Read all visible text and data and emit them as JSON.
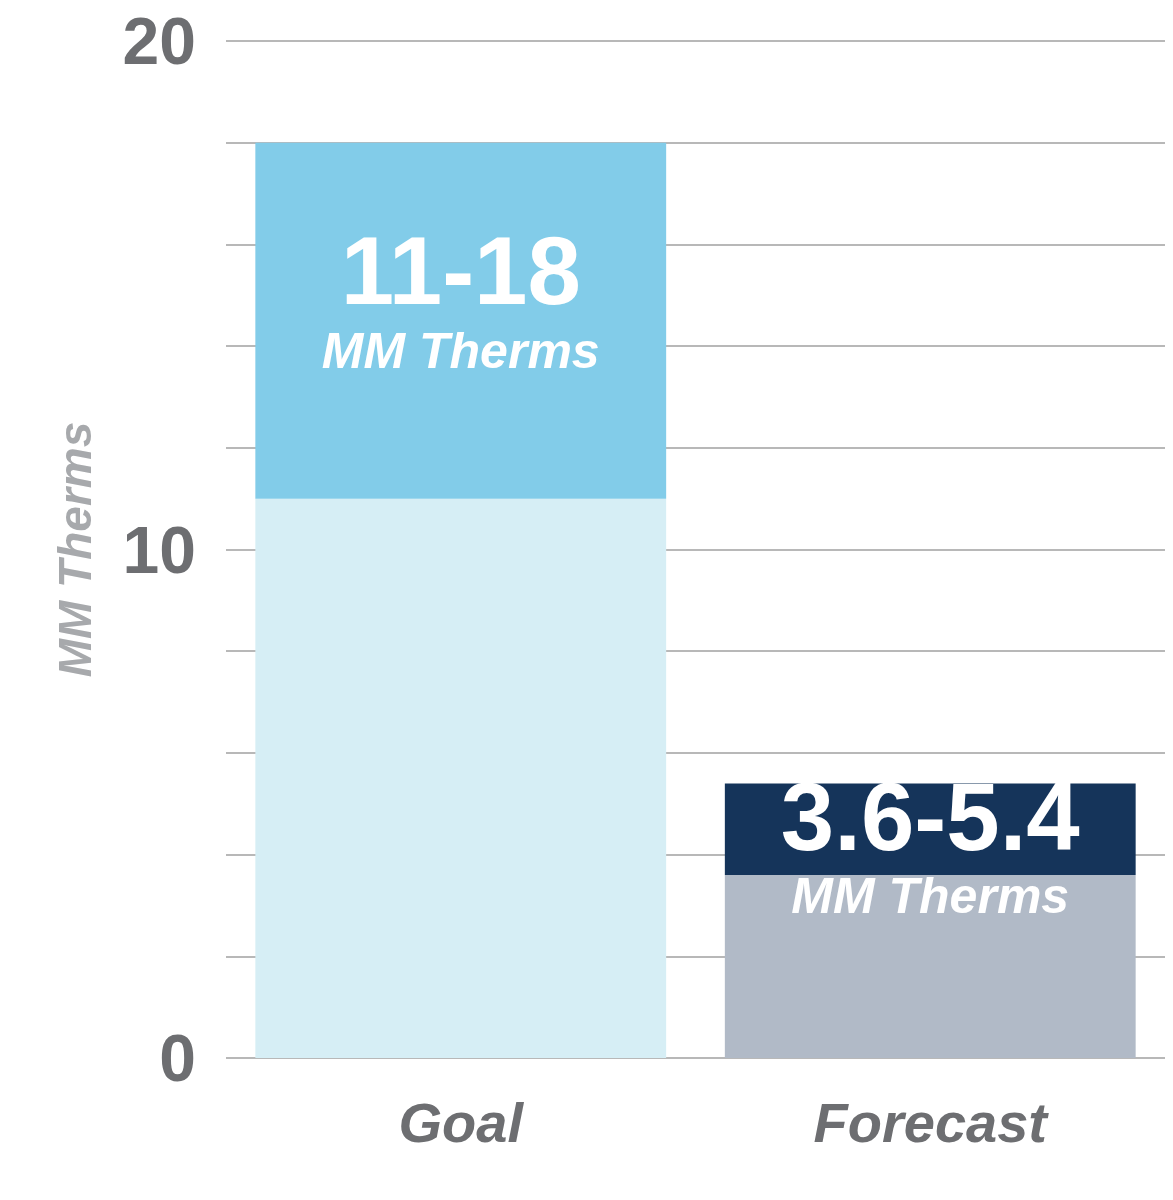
{
  "chart_data": {
    "type": "bar",
    "categories": [
      "Goal",
      "Forecast"
    ],
    "ylabel": "MM Therms",
    "stacked": true,
    "series": [
      {
        "colors": [
          "#d6eef5",
          "#b1bac7"
        ],
        "values": [
          11,
          3.6
        ]
      },
      {
        "colors": [
          "#82cce9",
          "#15345a"
        ],
        "values": [
          7,
          1.8
        ],
        "value_labels": [
          "11-18\nMM Therms",
          "3.6-5.4\nMM Therms"
        ]
      }
    ],
    "ylim": [
      0,
      20
    ],
    "yticks": [
      0,
      {
        "value": 2,
        "label": null
      },
      {
        "value": 4,
        "label": null
      },
      {
        "value": 6,
        "label": null
      },
      {
        "value": 8,
        "label": null
      },
      10,
      {
        "value": 12,
        "label": null
      },
      {
        "value": 14,
        "label": null
      },
      {
        "value": 16,
        "label": null
      },
      {
        "value": 18,
        "label": null
      },
      20
    ],
    "grid": "y"
  }
}
